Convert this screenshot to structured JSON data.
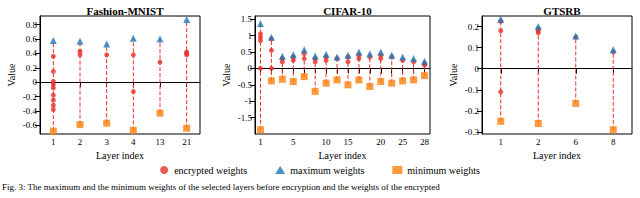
{
  "chart_data": [
    {
      "type": "scatter",
      "title": "Fashion-MNIST",
      "xlabel": "Layer index",
      "ylabel": "Value",
      "categories": [
        "1",
        "2",
        "3",
        "4",
        "13",
        "21"
      ],
      "ylim": [
        -0.72,
        0.92
      ],
      "yticks": [
        -0.6,
        -0.4,
        -0.2,
        0,
        0.2,
        0.4,
        0.6,
        0.8
      ],
      "line_style": "dashed",
      "series": [
        {
          "name": "encrypted weights",
          "color": "#e8302a",
          "marker": "circle",
          "values": [
            [
              0.36,
              0.15,
              0.01,
              -0.03,
              -0.08,
              -0.18,
              -0.25,
              -0.32,
              -0.38
            ],
            [
              0.43,
              0.38
            ],
            [
              0.38
            ],
            [
              0.38,
              -0.13
            ],
            [
              0.28
            ],
            [
              0.42,
              0.4,
              0.38
            ]
          ]
        },
        {
          "name": "maximum weights",
          "color": "#1f77b4",
          "marker": "triangle",
          "values": [
            0.58,
            0.57,
            0.53,
            0.61,
            0.6,
            0.87
          ]
        },
        {
          "name": "minimum weights",
          "color": "#ff7f0e",
          "marker": "square",
          "values": [
            -0.68,
            -0.59,
            -0.57,
            -0.67,
            -0.43,
            -0.64
          ]
        }
      ]
    },
    {
      "type": "scatter",
      "title": "CIFAR-10",
      "xlabel": "Layer index",
      "ylabel": "Value",
      "categories": [
        "1",
        null,
        null,
        "5",
        null,
        null,
        "10",
        null,
        "15",
        null,
        null,
        "20",
        null,
        "25",
        null,
        "28"
      ],
      "ylim": [
        -2.0,
        1.6
      ],
      "yticks": [
        -1.5,
        -1.0,
        -0.5,
        0.0,
        0.5,
        1.0,
        1.5
      ],
      "line_style": "dashed",
      "legend": "bottom",
      "series": [
        {
          "name": "encrypted weights",
          "color": "#e8302a",
          "marker": "circle",
          "values": [
            [
              1.05,
              0.95,
              0.85,
              0.0
            ],
            [
              0.9,
              0.55,
              0.0
            ],
            [
              0.3,
              0.2
            ],
            [
              0.35,
              0.25
            ],
            [
              0.45,
              0.3
            ],
            [
              0.3,
              0.2
            ],
            [
              0.35,
              0.25
            ],
            [
              0.3
            ],
            [
              0.35,
              0.2
            ],
            [
              0.4,
              0.3
            ],
            [
              0.35
            ],
            [
              0.4,
              0.3
            ],
            [
              0.35
            ],
            [
              0.25
            ],
            [
              0.2
            ],
            [
              0.15,
              0.1
            ]
          ]
        },
        {
          "name": "maximum weights",
          "color": "#1f77b4",
          "marker": "triangle",
          "values": [
            1.37,
            0.95,
            0.37,
            0.42,
            0.57,
            0.38,
            0.43,
            0.35,
            0.4,
            0.5,
            0.45,
            0.5,
            0.4,
            0.35,
            0.3,
            0.22
          ]
        },
        {
          "name": "minimum weights",
          "color": "#ff7f0e",
          "marker": "square",
          "values": [
            -1.87,
            -0.38,
            -0.33,
            -0.4,
            -0.25,
            -0.7,
            -0.45,
            -0.35,
            -0.5,
            -0.35,
            -0.55,
            -0.4,
            -0.45,
            -0.38,
            -0.35,
            -0.22
          ]
        }
      ]
    },
    {
      "type": "scatter",
      "title": "GTSRB",
      "xlabel": "Layer index",
      "ylabel": "Value",
      "categories": [
        "1",
        "2",
        "6",
        "8"
      ],
      "ylim": [
        -0.31,
        0.25
      ],
      "yticks": [
        -0.3,
        -0.2,
        -0.1,
        0.0,
        0.1,
        0.2
      ],
      "line_style": "dashed",
      "series": [
        {
          "name": "encrypted weights",
          "color": "#e8302a",
          "marker": "circle",
          "values": [
            [
              0.225,
              0.18,
              -0.11
            ],
            [
              0.19,
              0.18,
              0.17
            ],
            [
              0.15
            ],
            [
              0.08
            ]
          ]
        },
        {
          "name": "maximum weights",
          "color": "#1f77b4",
          "marker": "triangle",
          "values": [
            0.235,
            0.2,
            0.155,
            0.09
          ]
        },
        {
          "name": "minimum weights",
          "color": "#ff7f0e",
          "marker": "square",
          "values": [
            -0.25,
            -0.26,
            -0.165,
            -0.29
          ]
        }
      ]
    }
  ],
  "caption": "Fig. 3: The maximum and the minimum weights of the selected layers before encryption and the weights of the encrypted"
}
